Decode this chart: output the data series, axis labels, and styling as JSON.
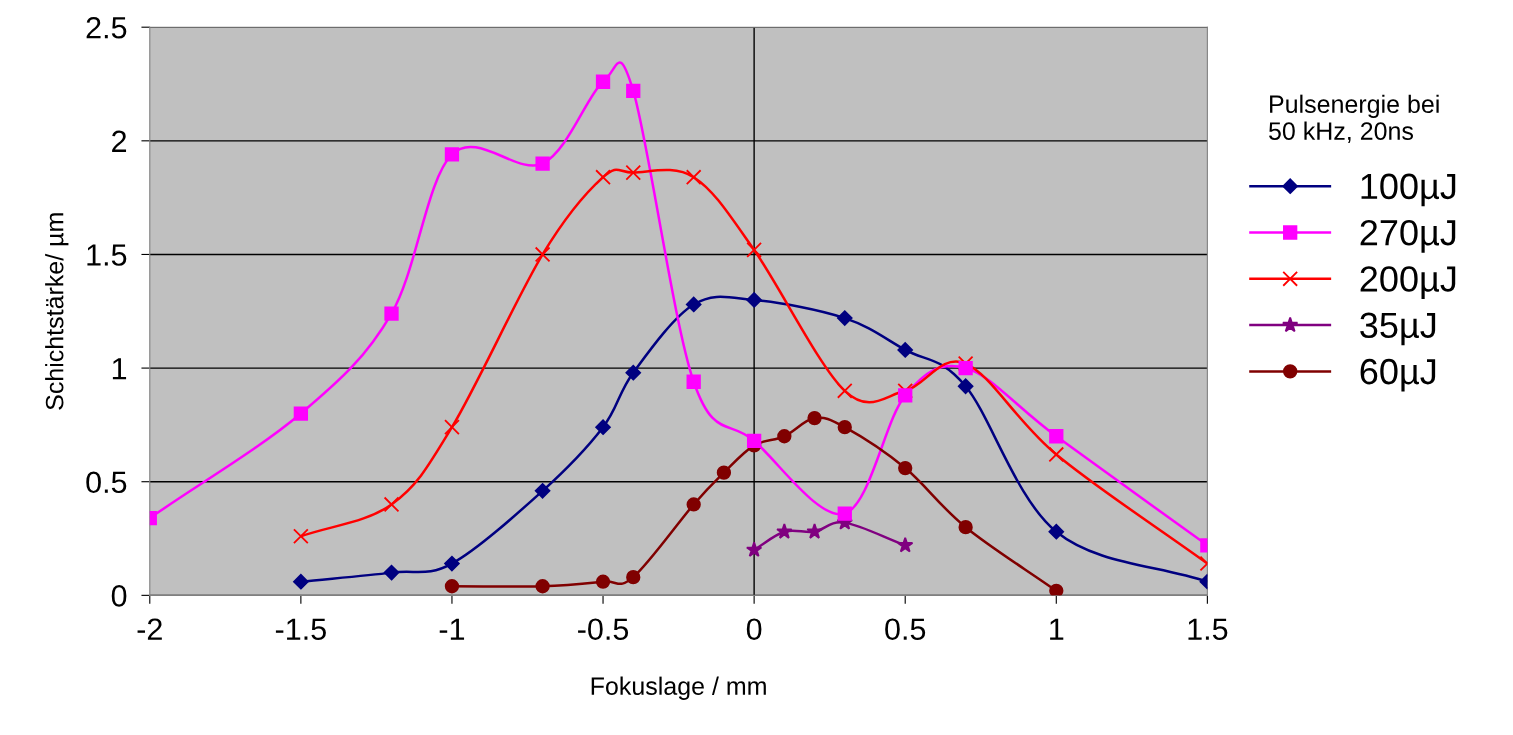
{
  "chart_data": {
    "type": "line",
    "xlabel": "Fokuslage / mm",
    "ylabel": "Schichtstärke/ µm",
    "legend_title": "Pulsenergie bei\n50 kHz, 20ns",
    "xlim": [
      -2,
      1.5
    ],
    "xticks": [
      -2,
      -1.5,
      -1,
      -0.5,
      0,
      0.5,
      1,
      1.5
    ],
    "ylim": [
      0,
      2.5
    ],
    "yticks": [
      0,
      0.5,
      1,
      1.5,
      2,
      2.5
    ],
    "grid": "y",
    "legend": "right",
    "line_style": "solid",
    "ref_lines": [
      {
        "axis": "x",
        "value": 0,
        "color": "#000000"
      }
    ],
    "series": [
      {
        "name": "100µJ",
        "color": "#000080",
        "marker": "diamond",
        "x": [
          -1.5,
          -1.2,
          -1,
          -0.7,
          -0.5,
          -0.4,
          -0.2,
          0,
          0.3,
          0.5,
          0.7,
          1,
          1.5
        ],
        "values": [
          0.06,
          0.1,
          0.14,
          0.46,
          0.74,
          0.98,
          1.28,
          1.3,
          1.22,
          1.08,
          0.92,
          0.28,
          0.06
        ]
      },
      {
        "name": "270µJ",
        "color": "#ff00ff",
        "marker": "square",
        "x": [
          -2,
          -1.5,
          -1.2,
          -1,
          -0.7,
          -0.5,
          -0.4,
          -0.2,
          0,
          0.3,
          0.5,
          0.7,
          1,
          1.5
        ],
        "values": [
          0.34,
          0.8,
          1.24,
          1.94,
          1.9,
          2.26,
          2.22,
          0.94,
          0.68,
          0.36,
          0.88,
          1.0,
          0.7,
          0.22
        ]
      },
      {
        "name": "200µJ",
        "color": "#ff0000",
        "marker": "cross",
        "x": [
          -1.5,
          -1.2,
          -1,
          -0.7,
          -0.5,
          -0.4,
          -0.2,
          0,
          0.3,
          0.5,
          0.7,
          1,
          1.5
        ],
        "values": [
          0.26,
          0.4,
          0.74,
          1.5,
          1.84,
          1.86,
          1.84,
          1.52,
          0.9,
          0.9,
          1.02,
          0.62,
          0.14
        ]
      },
      {
        "name": "35µJ",
        "color": "#800080",
        "marker": "star",
        "x": [
          0,
          0.1,
          0.2,
          0.3,
          0.5
        ],
        "values": [
          0.2,
          0.28,
          0.28,
          0.32,
          0.22
        ]
      },
      {
        "name": "60µJ",
        "color": "#800000",
        "marker": "circle",
        "x": [
          -1,
          -0.7,
          -0.5,
          -0.4,
          -0.2,
          -0.1,
          0,
          0.1,
          0.2,
          0.3,
          0.5,
          0.7,
          1
        ],
        "values": [
          0.04,
          0.04,
          0.06,
          0.08,
          0.4,
          0.54,
          0.66,
          0.7,
          0.78,
          0.74,
          0.56,
          0.3,
          0.02
        ]
      }
    ]
  }
}
